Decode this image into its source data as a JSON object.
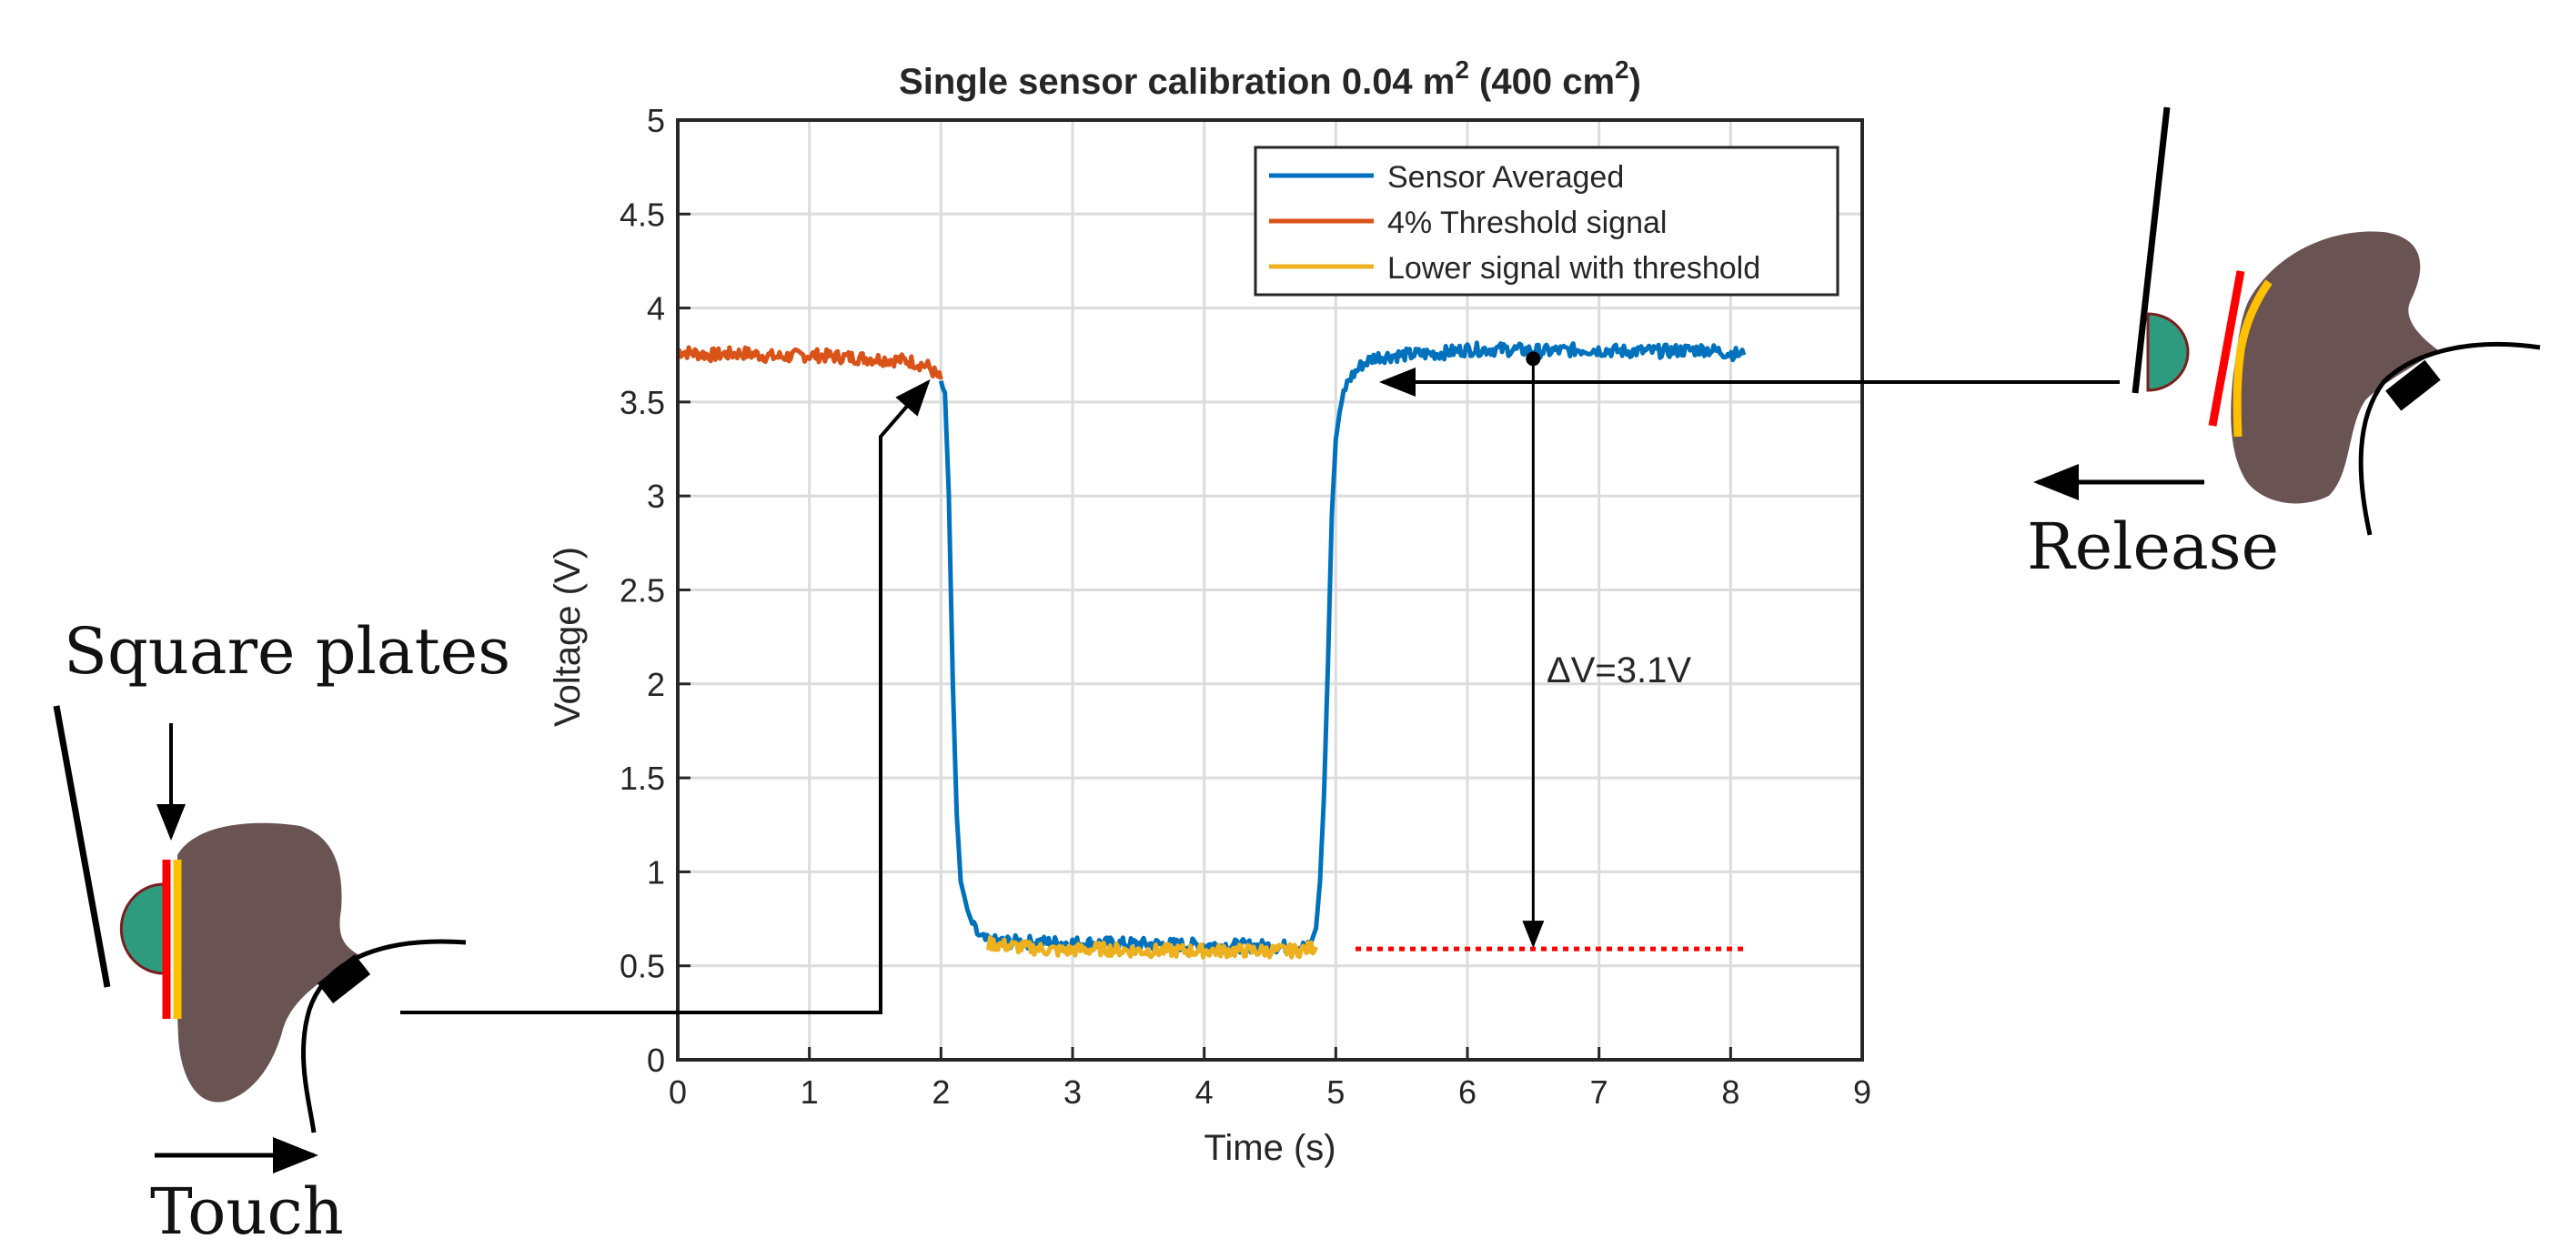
{
  "chart_data": {
    "type": "line",
    "title": {
      "prefix": "Single sensor calibration 0.04 m",
      "sup1": "2",
      "middle": " (400 cm",
      "sup2": "2",
      "suffix": ")"
    },
    "xlabel": "Time (s)",
    "ylabel": "Voltage (V)",
    "xlim": [
      0,
      9
    ],
    "ylim": [
      0,
      5
    ],
    "xticks": [
      0,
      1,
      2,
      3,
      4,
      5,
      6,
      7,
      8,
      9
    ],
    "yticks": [
      0,
      0.5,
      1,
      1.5,
      2,
      2.5,
      3,
      3.5,
      4,
      4.5,
      5
    ],
    "xtick_labels": [
      "0",
      "1",
      "2",
      "3",
      "4",
      "5",
      "6",
      "7",
      "8",
      "9"
    ],
    "ytick_labels": [
      "0",
      "0.5",
      "1",
      "1.5",
      "2",
      "2.5",
      "3",
      "3.5",
      "4",
      "4.5",
      "5"
    ],
    "grid": true,
    "legend_position": "top-right",
    "series": [
      {
        "name": "Sensor Averaged",
        "color": "#0072BD",
        "x": [
          2.0,
          2.03,
          2.06,
          2.09,
          2.12,
          2.15,
          2.2,
          2.25,
          2.3,
          2.35,
          4.8,
          4.85,
          4.88,
          4.91,
          4.94,
          4.97,
          5.0,
          5.03,
          5.06,
          5.1,
          5.15,
          5.2,
          5.3,
          5.5,
          5.8,
          6.0,
          6.3,
          6.6,
          6.9,
          7.2,
          7.5,
          7.8,
          8.1
        ],
        "y": [
          3.6,
          3.55,
          3.0,
          2.0,
          1.3,
          0.95,
          0.8,
          0.7,
          0.65,
          0.63,
          0.6,
          0.7,
          0.95,
          1.4,
          2.1,
          2.9,
          3.3,
          3.45,
          3.55,
          3.62,
          3.66,
          3.7,
          3.74,
          3.75,
          3.76,
          3.78,
          3.78,
          3.77,
          3.78,
          3.77,
          3.77,
          3.78,
          3.75
        ]
      },
      {
        "name": "4% Threshold signal",
        "color": "#D95319",
        "x": [
          0.0,
          0.25,
          0.5,
          0.75,
          1.0,
          1.25,
          1.5,
          1.75,
          1.9,
          2.0
        ],
        "y": [
          3.77,
          3.75,
          3.76,
          3.74,
          3.75,
          3.74,
          3.73,
          3.72,
          3.69,
          3.62
        ]
      },
      {
        "name": "Lower signal with threshold",
        "color": "#EDB120",
        "x": [
          2.35,
          2.6,
          2.9,
          3.2,
          3.5,
          3.8,
          4.1,
          4.4,
          4.7,
          4.85
        ],
        "y": [
          0.62,
          0.6,
          0.58,
          0.59,
          0.58,
          0.58,
          0.58,
          0.58,
          0.58,
          0.6
        ]
      }
    ],
    "reference_line": {
      "x": [
        5.15,
        8.1
      ],
      "y": [
        0.59,
        0.59
      ],
      "color": "#FF0000",
      "style": "dotted"
    },
    "delta_arrow": {
      "x": 6.5,
      "y_top": 3.73,
      "y_bottom": 0.59
    },
    "annotations": {
      "delta": "ΔV=3.1V",
      "square_plates": "Square plates",
      "touch": "Touch",
      "release": "Release"
    }
  },
  "colors": {
    "head": "#6A5353",
    "button": "#2E9B7F",
    "plate_red": "#FF0000",
    "plate_yellow": "#FFC000",
    "wire": "#000000"
  }
}
